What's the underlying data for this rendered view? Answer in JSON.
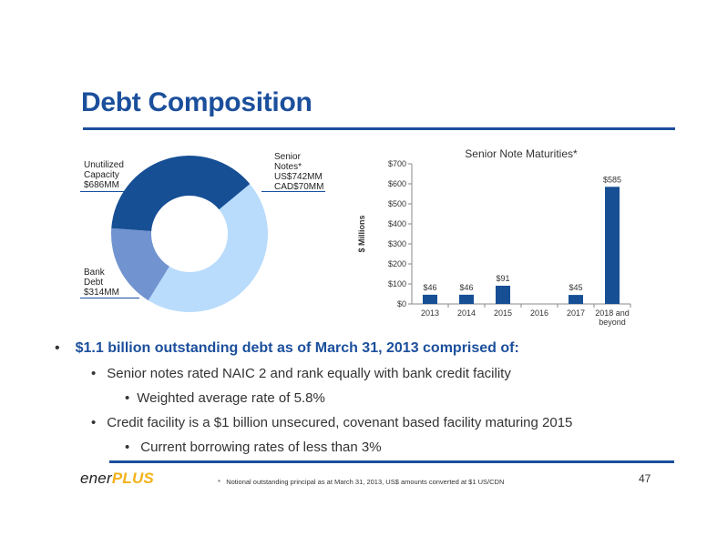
{
  "title": "Debt Composition",
  "donut": {
    "segments": [
      {
        "label_lines": [
          "Senior",
          "Notes*",
          "US$742MM",
          "CAD$70MM"
        ],
        "value": 812,
        "color": "#b9dcfc"
      },
      {
        "label_lines": [
          "Bank",
          "Debt",
          "$314MM"
        ],
        "value": 314,
        "color": "#7193cf"
      },
      {
        "label_lines": [
          "Unutilized",
          "Capacity",
          "$686MM"
        ],
        "value": 686,
        "color": "#174f95"
      }
    ]
  },
  "chart_data": {
    "type": "bar",
    "title": "Senior Note Maturities*",
    "ylabel": "$ Millions",
    "categories": [
      "2013",
      "2014",
      "2015",
      "2016",
      "2017",
      "2018 and beyond"
    ],
    "values": [
      46,
      46,
      91,
      0,
      45,
      585
    ],
    "data_labels": [
      "$46",
      "$46",
      "$91",
      "",
      "$45",
      "$585"
    ],
    "ylim": [
      0,
      700
    ],
    "yticks": [
      "$0",
      "$100",
      "$200",
      "$300",
      "$400",
      "$500",
      "$600",
      "$700"
    ],
    "bar_color": "#174f95"
  },
  "bullets": {
    "main": "$1.1 billion outstanding debt as of March 31, 2013 comprised of:",
    "sub1": "Senior notes rated NAIC 2 and rank equally with bank credit facility",
    "sub1a": "Weighted average rate of 5.8%",
    "sub2": "Credit facility is a $1 billion unsecured, covenant based facility maturing 2015",
    "sub2a": "Current borrowing rates of less than 3%",
    "marker": "•"
  },
  "footer": {
    "logo_left": "ener",
    "logo_right": "PLUS",
    "footnote_marker": "*",
    "footnote": "Notional outstanding principal  as at March 31, 2013, US$ amounts converted at $1 US/CDN",
    "page_number": "47"
  }
}
